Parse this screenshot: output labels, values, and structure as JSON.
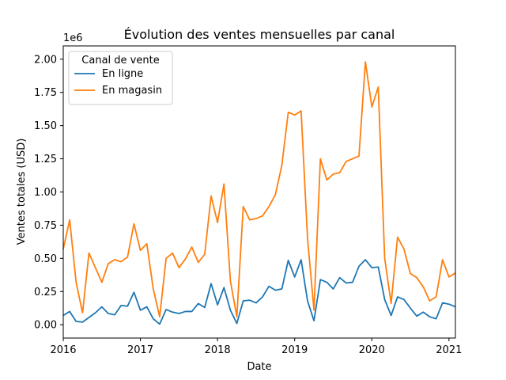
{
  "chart_data": {
    "type": "line",
    "title": "Évolution des ventes mensuelles par canal",
    "xlabel": "Date",
    "ylabel": "Ventes totales (USD)",
    "y_offset_text": "1e6",
    "x_ticks": [
      {
        "date": "2016-01",
        "label": "2016"
      },
      {
        "date": "2017-01",
        "label": "2017"
      },
      {
        "date": "2018-01",
        "label": "2018"
      },
      {
        "date": "2019-01",
        "label": "2019"
      },
      {
        "date": "2020-01",
        "label": "2020"
      },
      {
        "date": "2021-01",
        "label": "2021"
      }
    ],
    "y_ticks": [
      0,
      0.25,
      0.5,
      0.75,
      1.0,
      1.25,
      1.5,
      1.75,
      2.0
    ],
    "y_tick_labels": [
      "0.00",
      "0.25",
      "0.50",
      "0.75",
      "1.00",
      "1.25",
      "1.50",
      "1.75",
      "2.00"
    ],
    "xlim": [
      "2016-01",
      "2021-02"
    ],
    "ylim": [
      -0.1,
      2.1
    ],
    "grid": false,
    "legend": {
      "title": "Canal de vente",
      "placement": "upper-left"
    },
    "x": [
      "2016-01",
      "2016-02",
      "2016-03",
      "2016-04",
      "2016-05",
      "2016-06",
      "2016-07",
      "2016-08",
      "2016-09",
      "2016-10",
      "2016-11",
      "2016-12",
      "2017-01",
      "2017-02",
      "2017-03",
      "2017-04",
      "2017-05",
      "2017-06",
      "2017-07",
      "2017-08",
      "2017-09",
      "2017-10",
      "2017-11",
      "2017-12",
      "2018-01",
      "2018-02",
      "2018-03",
      "2018-04",
      "2018-05",
      "2018-06",
      "2018-07",
      "2018-08",
      "2018-09",
      "2018-10",
      "2018-11",
      "2018-12",
      "2019-01",
      "2019-02",
      "2019-03",
      "2019-04",
      "2019-05",
      "2019-06",
      "2019-07",
      "2019-08",
      "2019-09",
      "2019-10",
      "2019-11",
      "2019-12",
      "2020-01",
      "2020-02",
      "2020-03",
      "2020-04",
      "2020-05",
      "2020-06",
      "2020-07",
      "2020-08",
      "2020-09",
      "2020-10",
      "2020-11",
      "2020-12",
      "2021-01",
      "2021-02"
    ],
    "series": [
      {
        "name": "En ligne",
        "color": "#1f77b4",
        "values": [
          0.07,
          0.1,
          0.025,
          0.02,
          0.055,
          0.09,
          0.135,
          0.085,
          0.075,
          0.145,
          0.14,
          0.245,
          0.11,
          0.135,
          0.045,
          0.005,
          0.115,
          0.095,
          0.085,
          0.1,
          0.1,
          0.16,
          0.13,
          0.31,
          0.15,
          0.28,
          0.11,
          0.01,
          0.18,
          0.185,
          0.165,
          0.21,
          0.29,
          0.26,
          0.27,
          0.485,
          0.36,
          0.49,
          0.18,
          0.03,
          0.34,
          0.32,
          0.27,
          0.355,
          0.315,
          0.32,
          0.44,
          0.49,
          0.43,
          0.435,
          0.19,
          0.07,
          0.21,
          0.19,
          0.125,
          0.065,
          0.095,
          0.06,
          0.045,
          0.165,
          0.155,
          0.135
        ]
      },
      {
        "name": "En magasin",
        "color": "#ff7f0e",
        "values": [
          0.57,
          0.79,
          0.32,
          0.09,
          0.54,
          0.43,
          0.32,
          0.46,
          0.49,
          0.475,
          0.51,
          0.76,
          0.56,
          0.61,
          0.27,
          0.06,
          0.5,
          0.54,
          0.43,
          0.495,
          0.585,
          0.47,
          0.53,
          0.97,
          0.77,
          1.06,
          0.33,
          0.06,
          0.89,
          0.79,
          0.8,
          0.82,
          0.89,
          0.98,
          1.2,
          1.6,
          1.58,
          1.61,
          0.65,
          0.11,
          1.25,
          1.09,
          1.135,
          1.145,
          1.23,
          1.25,
          1.27,
          1.98,
          1.64,
          1.79,
          0.5,
          0.16,
          0.66,
          0.57,
          0.385,
          0.355,
          0.285,
          0.18,
          0.21,
          0.49,
          0.36,
          0.39
        ]
      }
    ]
  }
}
